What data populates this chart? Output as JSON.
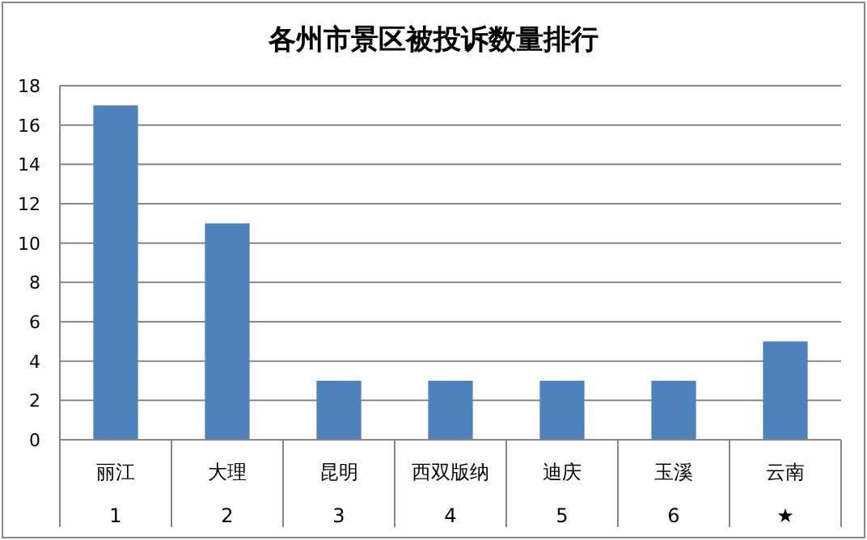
{
  "chart_data": {
    "type": "bar",
    "title": "各州市景区被投诉数量排行",
    "categories": [
      "丽江\n1",
      "大理\n2",
      "昆明\n3",
      "西双版纳\n4",
      "迪庆\n5",
      "玉溪\n6",
      "云南\n★"
    ],
    "values": [
      17,
      11,
      3,
      3,
      3,
      3,
      5
    ],
    "color": "#4f81bd",
    "ylim": [
      0,
      18
    ],
    "yticks": [
      0,
      2,
      4,
      6,
      8,
      10,
      12,
      14,
      16,
      18
    ],
    "grid": "y"
  }
}
